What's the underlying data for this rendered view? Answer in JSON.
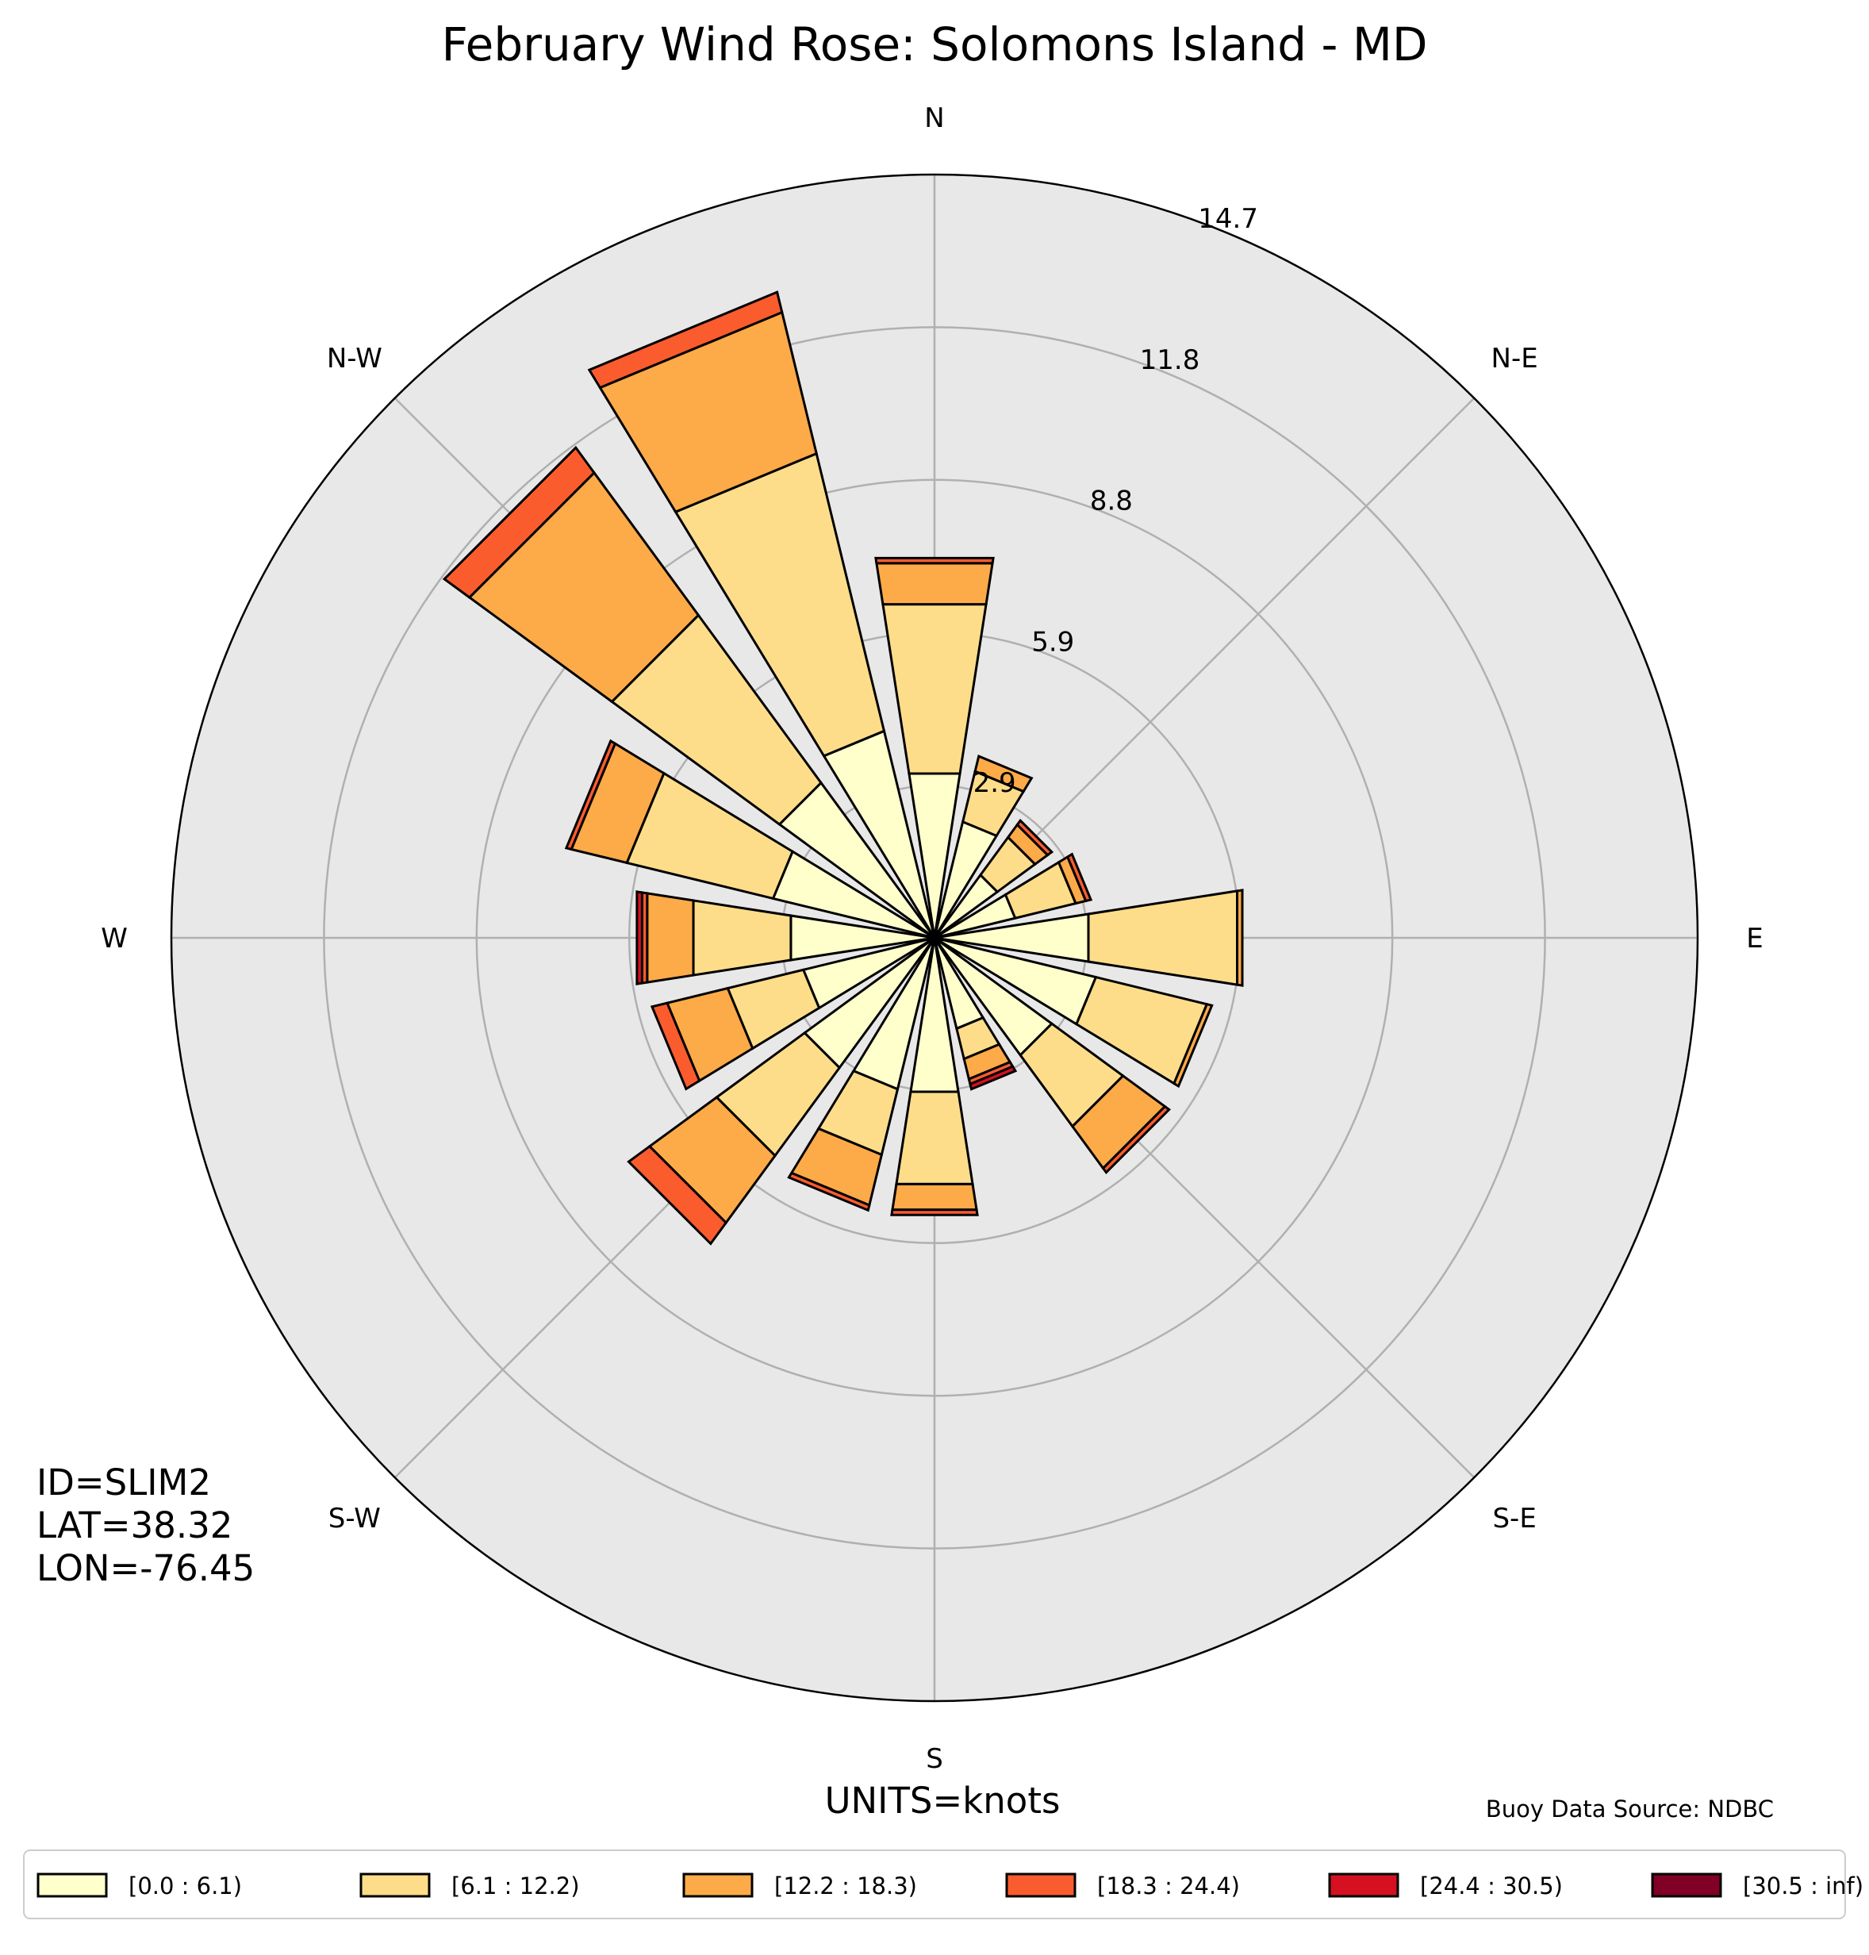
{
  "chart_data": {
    "type": "wind-rose",
    "title": "February Wind Rose: Solomons Island - MD",
    "directions": [
      "N",
      "N-E",
      "E",
      "S-E",
      "S",
      "S-W",
      "W",
      "N-W"
    ],
    "radial_ticks": [
      "2.9",
      "5.9",
      "8.8",
      "11.8",
      "14.7"
    ],
    "radial_tick_values": [
      2.94,
      5.88,
      8.82,
      11.76,
      14.7
    ],
    "rmax": 14.7,
    "grid": true,
    "sector_angles_deg": [
      0,
      22.5,
      45,
      67.5,
      90,
      112.5,
      135,
      157.5,
      180,
      202.5,
      225,
      247.5,
      270,
      292.5,
      315,
      337.5
    ],
    "bins": [
      {
        "label": "[0.0 : 6.1)",
        "color": "#ffffcc"
      },
      {
        "label": "[6.1 : 12.2)",
        "color": "#fedd8a"
      },
      {
        "label": "[12.2 : 18.3)",
        "color": "#fdaa48"
      },
      {
        "label": "[18.3 : 24.4)",
        "color": "#fa5c2e"
      },
      {
        "label": "[24.4 : 30.5)",
        "color": "#d51020"
      },
      {
        "label": "[30.5 : inf)",
        "color": "#800026"
      }
    ],
    "frequencies": [
      [
        3.2,
        3.3,
        0.8,
        0.1,
        0.0,
        0.0
      ],
      [
        2.3,
        1.0,
        0.3,
        0.0,
        0.0,
        0.0
      ],
      [
        1.5,
        0.9,
        0.3,
        0.1,
        0.0,
        0.0
      ],
      [
        1.6,
        1.2,
        0.2,
        0.1,
        0.0,
        0.0
      ],
      [
        3.0,
        2.9,
        0.1,
        0.0,
        0.0,
        0.0
      ],
      [
        3.2,
        2.2,
        0.1,
        0.0,
        0.0,
        0.0
      ],
      [
        2.8,
        1.7,
        1.0,
        0.1,
        0.0,
        0.0
      ],
      [
        1.8,
        0.6,
        0.4,
        0.1,
        0.1,
        0.0
      ],
      [
        3.0,
        1.8,
        0.5,
        0.1,
        0.0,
        0.0
      ],
      [
        3.0,
        1.3,
        1.0,
        0.1,
        0.0,
        0.0
      ],
      [
        3.1,
        2.1,
        1.6,
        0.5,
        0.0,
        0.0
      ],
      [
        2.6,
        1.5,
        1.2,
        0.3,
        0.0,
        0.0
      ],
      [
        2.8,
        1.9,
        0.9,
        0.1,
        0.1,
        0.0
      ],
      [
        3.2,
        2.9,
        1.1,
        0.1,
        0.0,
        0.0
      ],
      [
        3.7,
        4.0,
        3.4,
        0.6,
        0.0,
        0.0
      ],
      [
        4.1,
        5.5,
        2.8,
        0.4,
        0.0,
        0.0
      ]
    ],
    "info": [
      "ID=SLIM2",
      "LAT=38.32",
      "LON=-76.45"
    ],
    "units": "UNITS=knots",
    "source": "Buoy Data Source: NDBC",
    "legend_position": "bottom"
  },
  "colors": {
    "axes_bg": "#e8e8e8",
    "grid": "#b0b0b0",
    "edge": "#000000"
  }
}
